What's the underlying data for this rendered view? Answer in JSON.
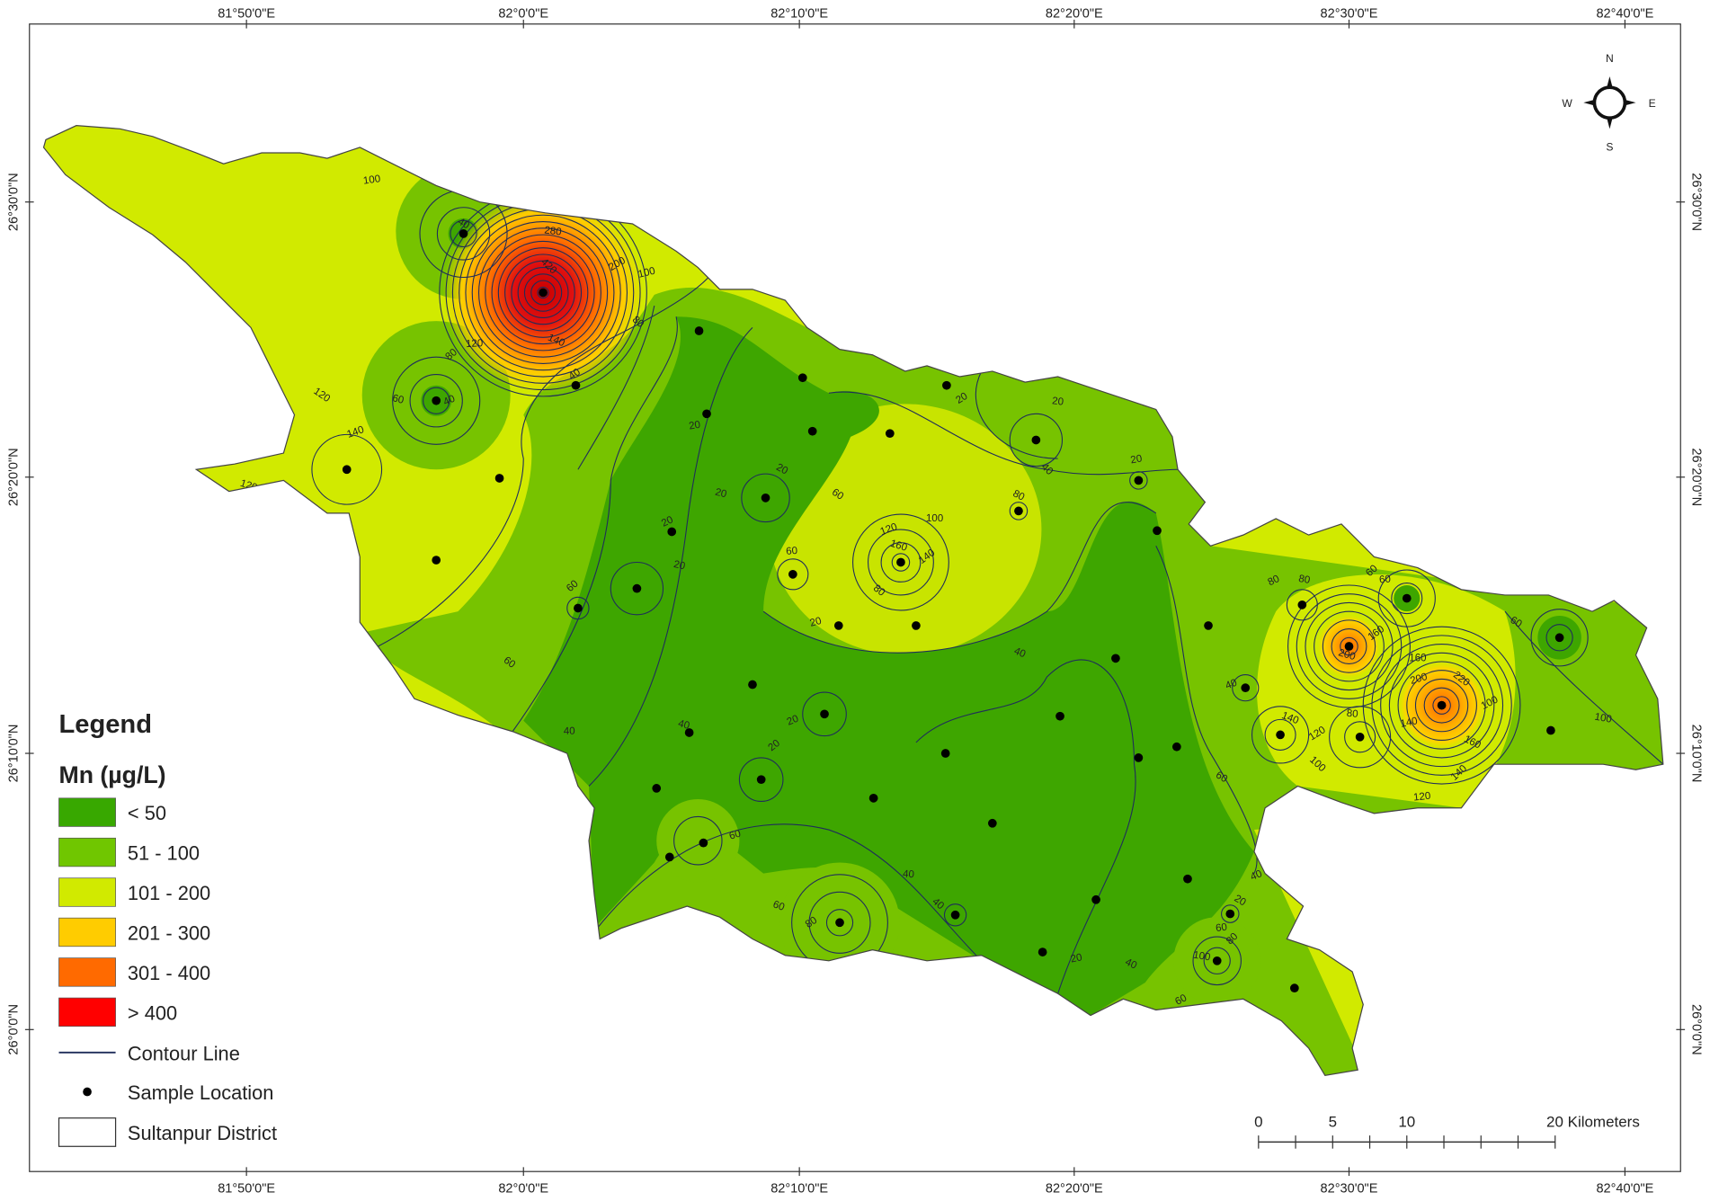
{
  "graticule": {
    "longitudes": [
      "81°50'0\"E",
      "82°0'0\"E",
      "82°10'0\"E",
      "82°20'0\"E",
      "82°30'0\"E",
      "82°40'0\"E"
    ],
    "latitudes": [
      "26°30'0\"N",
      "26°20'0\"N",
      "26°10'0\"N",
      "26°0'0\"N"
    ]
  },
  "compass": {
    "n": "N",
    "s": "S",
    "e": "E",
    "w": "W"
  },
  "legend": {
    "title": "Legend",
    "subtitle": "Mn (µg/L)",
    "classes": [
      {
        "label": "< 50",
        "color": "#38a800"
      },
      {
        "label": "51 - 100",
        "color": "#70c600"
      },
      {
        "label": "101 - 200",
        "color": "#d1ea00"
      },
      {
        "label": "201 - 300",
        "color": "#ffcc00"
      },
      {
        "label": "301 - 400",
        "color": "#ff6a00"
      },
      {
        "label": "> 400",
        "color": "#ff0000"
      }
    ],
    "contour_line": "Contour Line",
    "sample_location": "Sample Location",
    "district": "Sultanpur District"
  },
  "scale_bar": {
    "labels": [
      "0",
      "5",
      "10",
      "20 Kilometers"
    ]
  },
  "contour_labels": [
    "80",
    "100",
    "40",
    "40",
    "60",
    "80",
    "120",
    "120",
    "140",
    "120",
    "40",
    "60",
    "80",
    "100",
    "140",
    "200",
    "280",
    "420",
    "20",
    "20",
    "20",
    "20",
    "60",
    "60",
    "60",
    "120",
    "160",
    "140",
    "100",
    "80",
    "20",
    "40",
    "20",
    "20",
    "40",
    "20",
    "80",
    "80",
    "80",
    "60",
    "60",
    "60",
    "40",
    "200",
    "160",
    "160",
    "220",
    "200",
    "140",
    "120",
    "80",
    "100",
    "140",
    "160",
    "100",
    "100",
    "140",
    "120",
    "60",
    "20",
    "40",
    "20",
    "40",
    "60",
    "60",
    "60",
    "80",
    "40",
    "40",
    "20",
    "40",
    "60",
    "100",
    "80",
    "60",
    "20",
    "40",
    "20"
  ]
}
